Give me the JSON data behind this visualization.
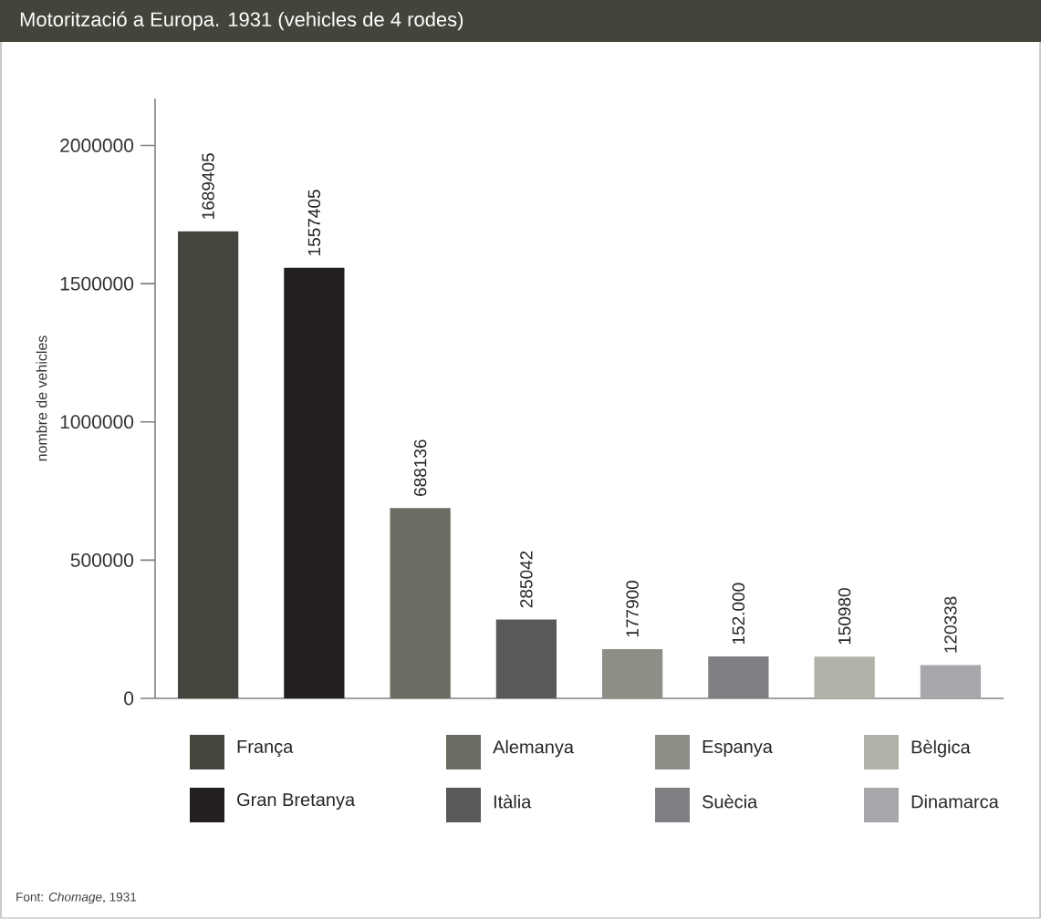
{
  "chart_data": {
    "type": "bar",
    "title": "Motorització a Europa. 1931 (vehicles de 4 rodes)",
    "ylabel": "nombre de vehicles",
    "categories": [
      null
    ],
    "series": [
      {
        "name": "França",
        "color": "#46453d",
        "values": [
          1689405
        ],
        "value_labels": [
          "1689405"
        ]
      },
      {
        "name": "Gran Bretanya",
        "color": "#231f20",
        "values": [
          1557405
        ],
        "value_labels": [
          "1557405"
        ]
      },
      {
        "name": "Alemanya",
        "color": "#6d6c62",
        "values": [
          688136
        ],
        "value_labels": [
          "688136"
        ]
      },
      {
        "name": "Itàlia",
        "color": "#58595b",
        "values": [
          285042
        ],
        "value_labels": [
          "285042"
        ]
      },
      {
        "name": "Espanya",
        "color": "#8d8e85",
        "values": [
          177900
        ],
        "value_labels": [
          "177900"
        ]
      },
      {
        "name": "Suècia",
        "color": "#7f8084",
        "values": [
          152000
        ],
        "value_labels": [
          "152.000"
        ]
      },
      {
        "name": "Bèlgica",
        "color": "#b1b1a8",
        "values": [
          150980
        ],
        "value_labels": [
          "150980"
        ]
      },
      {
        "name": "Dinamarca",
        "color": "#a7a8ac",
        "values": [
          120338
        ],
        "value_labels": [
          "120338"
        ]
      }
    ],
    "ylim": [
      0,
      2170000
    ],
    "yticks": [
      0,
      500000,
      1000000,
      1500000,
      2000000
    ],
    "tick_labels": "y",
    "legend": "bottom",
    "annotations": [
      "Font: *Chomage*, 1931"
    ]
  }
}
